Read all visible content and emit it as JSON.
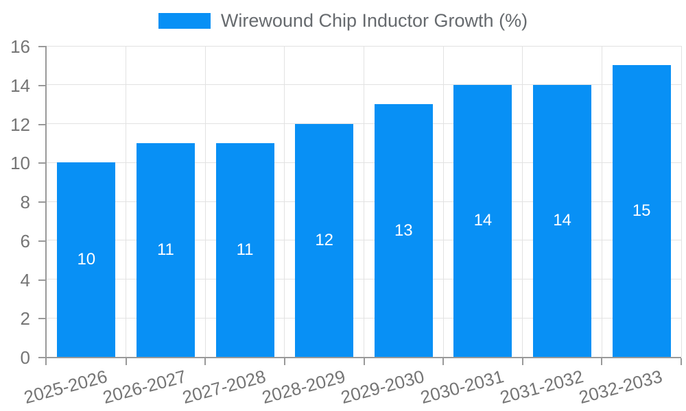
{
  "legend": {
    "label": "Wirewound Chip Inductor Growth (%)",
    "swatch_color": "#0890f5"
  },
  "chart_data": {
    "type": "bar",
    "title": "Wirewound Chip Inductor Growth (%)",
    "categories": [
      "2025-2026",
      "2026-2027",
      "2027-2028",
      "2028-2029",
      "2029-2030",
      "2030-2031",
      "2031-2032",
      "2032-2033"
    ],
    "values": [
      10,
      11,
      11,
      12,
      13,
      14,
      14,
      15
    ],
    "bar_labels": [
      "10",
      "11",
      "11",
      "12",
      "13",
      "14",
      "14",
      "15"
    ],
    "xlabel": "",
    "ylabel": "",
    "ylim": [
      0,
      16
    ],
    "ytick_step": 2,
    "ytick_labels": [
      "0",
      "2",
      "4",
      "6",
      "8",
      "10",
      "12",
      "14",
      "16"
    ],
    "grid": true,
    "legend_position": "top",
    "x_label_rotation_deg": -15
  },
  "colors": {
    "bar": "#0890f5",
    "gridline": "#e2e2e2",
    "axis_line": "#999999",
    "axis_text": "#757575",
    "legend_text": "#666a6e",
    "bar_label_text": "#ffffff",
    "background": "#ffffff"
  }
}
